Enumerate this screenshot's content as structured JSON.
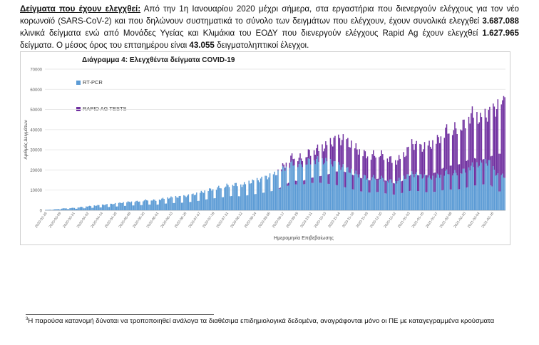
{
  "paragraph": {
    "heading": "Δείγματα που έχουν ελεγχθεί:",
    "text1": " Από την 1η Ιανουαρίου 2020 μέχρι σήμερα, στα εργαστήρια που διενεργούν ελέγχους για τον νέο κορωνοϊό (SARS-CoV-2) και που δηλώνουν συστηματικά το σύνολο των δειγμάτων που ελέγχουν, έχουν συνολικά ελεγχθεί ",
    "pcr_total": "3.687.088",
    "text2": " κλινικά δείγματα ενώ από Μονάδες Υγείας και Κλιμάκια του ΕΟΔΥ που διενεργούν ελέγχους Rapid Ag έχουν ελεγχθεί ",
    "rapid_total": "1.627.965",
    "text3": " δείγματα. Ο μέσος όρος του επταημέρου είναι ",
    "avg": "43.055",
    "text4": " δειγματοληπτικοί έλεγχοι."
  },
  "footnote": {
    "mark": "3",
    "text": "Η παρούσα κατανομή δύναται να τροποποιηθεί ανάλογα τα διαθέσιμα επιδημιολογικά δεδομένα, αναγράφονται μόνο οι ΠΕ με καταγεγραμμένα κρούσματα"
  },
  "colors": {
    "pcr": "#5b9bd5",
    "rapid": "#7030a0",
    "grid": "#e3e3e3"
  },
  "chart_data": {
    "type": "bar",
    "stacked": true,
    "title": "Διάγραμμα 4: Ελεγχθέντα δείγματα COVID-19",
    "xlabel": "Ημερομηνία Επιβεβαίωσης",
    "ylabel": "Αριθμός Δειγμάτων",
    "ylim": [
      0,
      70000
    ],
    "yticks": [
      0,
      10000,
      20000,
      30000,
      40000,
      50000,
      60000,
      70000
    ],
    "grid": true,
    "legend_position": "top-left",
    "x_tick_labels": [
      "2020-02-26",
      "2020-03-09",
      "2020-03-21",
      "2020-04-02",
      "2020-04-14",
      "2020-04-26",
      "2020-05-08",
      "2020-05-20",
      "2020-06-01",
      "2020-06-13",
      "2020-06-25",
      "2020-07-07",
      "2020-07-19",
      "2020-07-31",
      "2020-08-12",
      "2020-08-24",
      "2020-09-05",
      "2020-09-17",
      "2020-09-29",
      "2020-10-11",
      "2020-10-23",
      "2020-11-04",
      "2020-11-16",
      "2020-11-28",
      "2020-12-10",
      "2020-12-22",
      "2021-01-03",
      "2021-01-15",
      "2021-01-27",
      "2021-02-08",
      "2021-02-20",
      "2021-03-04",
      "2021-03-16"
    ],
    "period_days": 12,
    "series": [
      {
        "name": "RT-PCR",
        "values": [
          150,
          400,
          900,
          1100,
          1500,
          2000,
          2400,
          2800,
          3200,
          3800,
          4300,
          4500,
          5200,
          5000,
          6000,
          6500,
          6800,
          7500,
          8500,
          10000,
          11000,
          12000,
          13000,
          12500,
          14000,
          15000,
          16500,
          18000,
          21000,
          23500,
          23000,
          24500,
          25000,
          24000,
          23000,
          21000,
          19000,
          17000,
          16000,
          16500,
          15000,
          14000,
          16000,
          18000,
          17000,
          16000,
          17000,
          19000,
          18500,
          19500,
          22000,
          23000,
          24000,
          17000
        ]
      },
      {
        "name": "RAPID AG TESTS",
        "values": [
          0,
          0,
          0,
          0,
          0,
          0,
          0,
          0,
          0,
          0,
          0,
          0,
          0,
          0,
          0,
          0,
          0,
          0,
          0,
          0,
          0,
          0,
          0,
          0,
          0,
          0,
          0,
          0,
          1500,
          3500,
          3000,
          4500,
          5500,
          8000,
          12000,
          14000,
          13000,
          12000,
          11000,
          12000,
          11500,
          10000,
          11000,
          15000,
          14000,
          16000,
          18000,
          21000,
          22000,
          23000,
          26000,
          22000,
          24000,
          34000
        ]
      }
    ]
  }
}
